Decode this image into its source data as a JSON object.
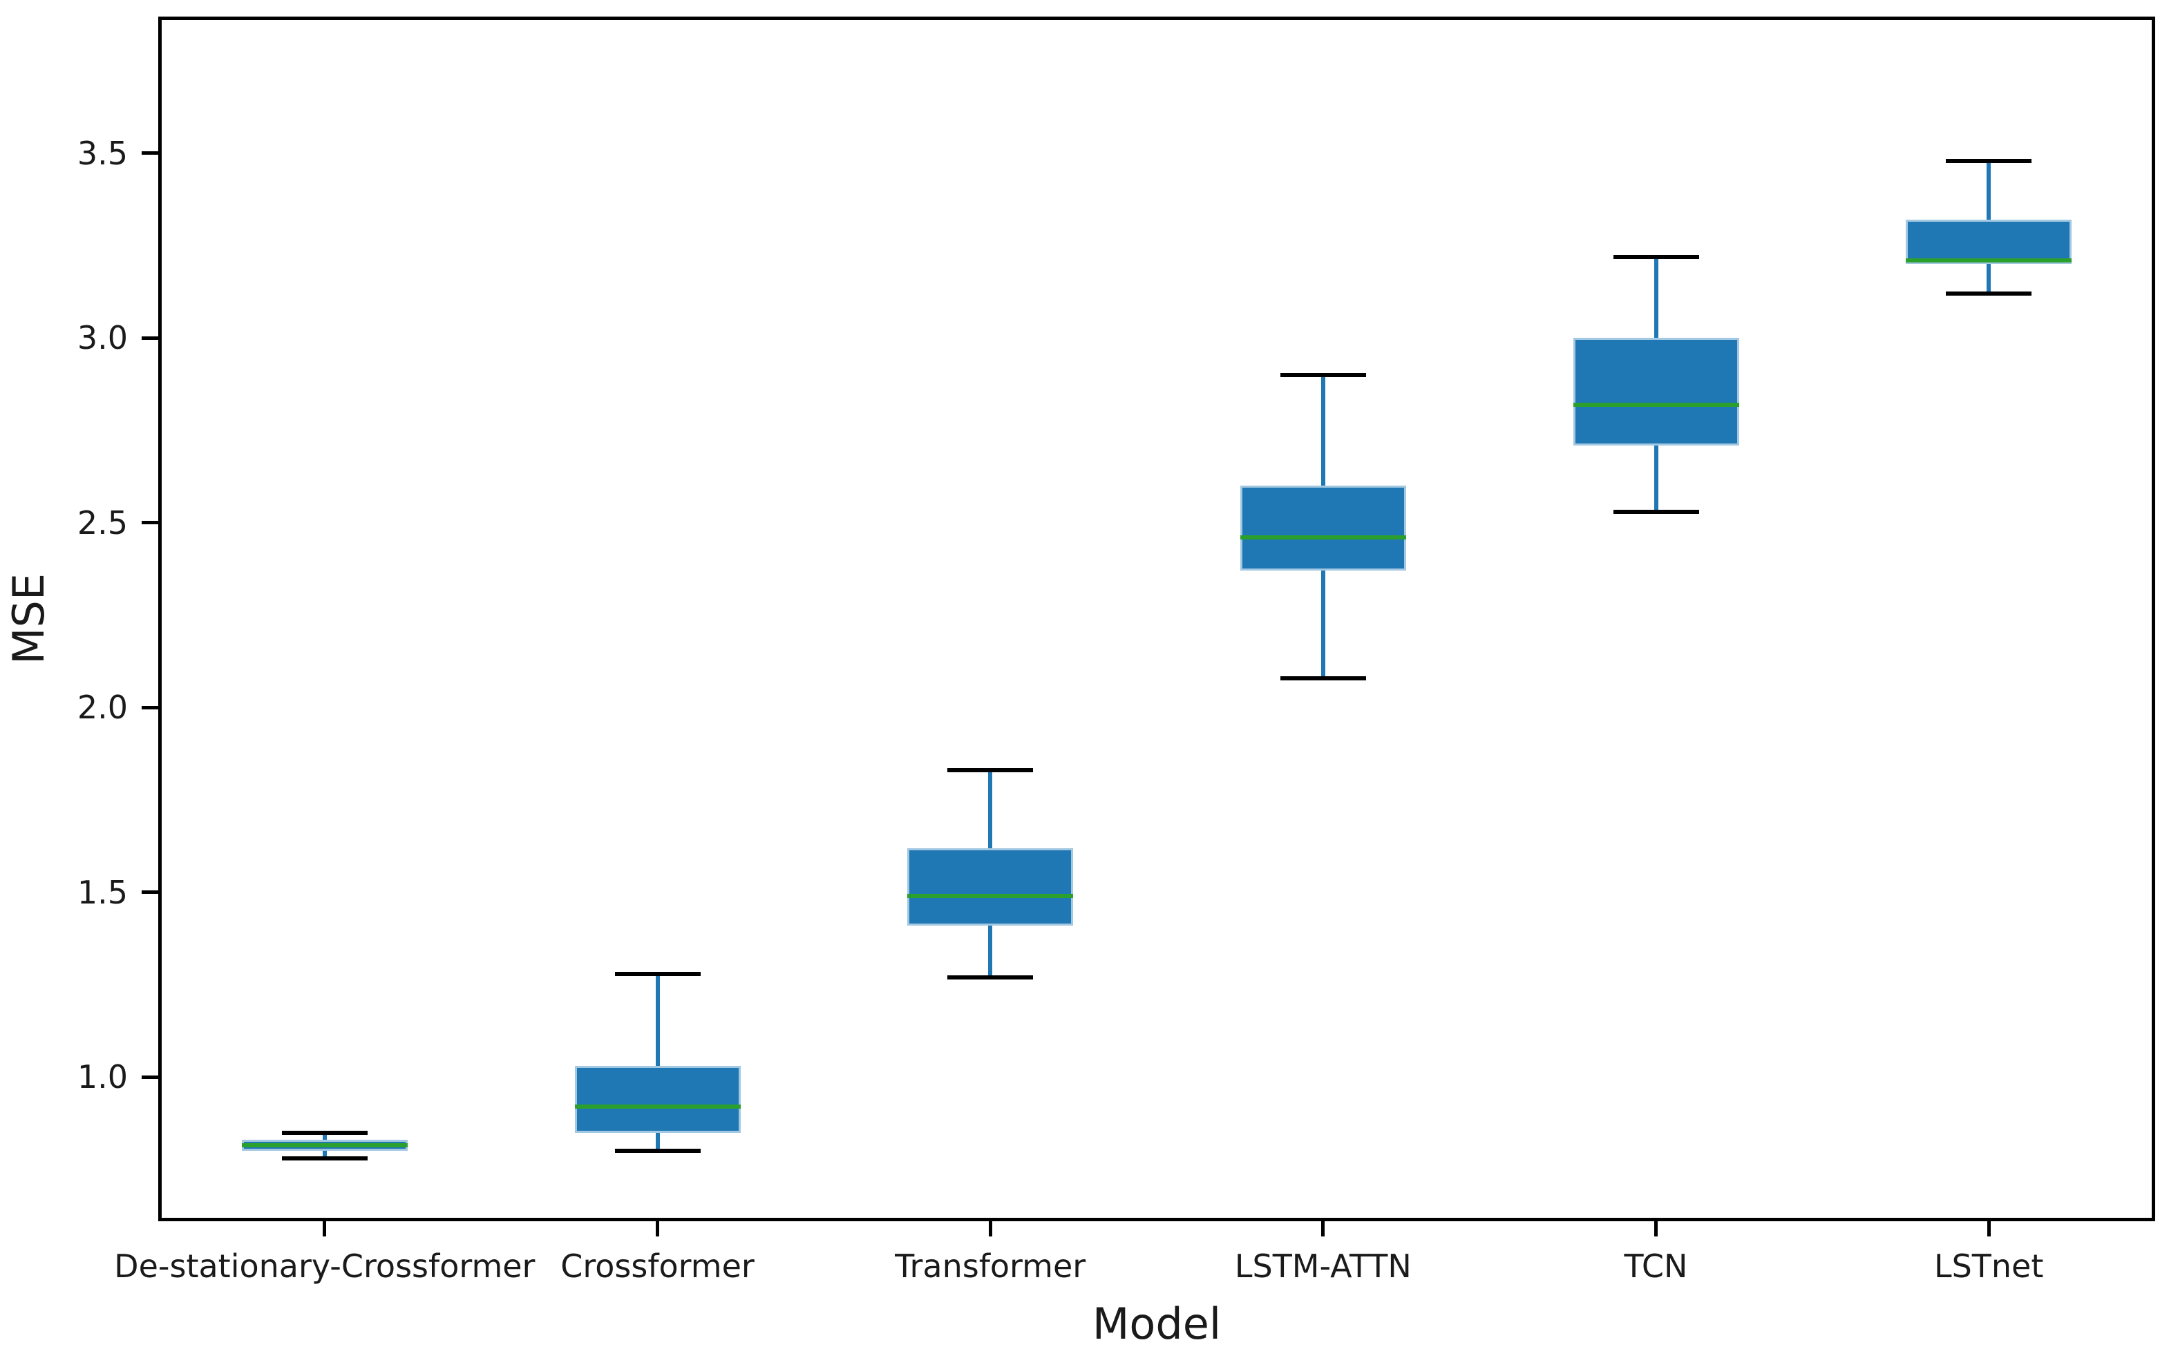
{
  "figure": {
    "background": "#ffffff"
  },
  "chart_data": {
    "type": "boxplot",
    "title": "",
    "xlabel": "Model",
    "ylabel": "MSE",
    "categories": [
      "De-stationary-Crossformer",
      "Crossformer",
      "Transformer",
      "LSTM-ATTN",
      "TCN",
      "LSTnet"
    ],
    "yticks": [
      "1.0",
      "1.5",
      "2.0",
      "2.5",
      "3.0",
      "3.5"
    ],
    "ylim": [
      0.61,
      3.87
    ],
    "grid": false,
    "legend": "none",
    "series": [
      {
        "name": "De-stationary-Crossformer",
        "whislo": 0.78,
        "q1": 0.8,
        "med": 0.815,
        "q3": 0.83,
        "whishi": 0.85
      },
      {
        "name": "Crossformer",
        "whislo": 0.8,
        "q1": 0.85,
        "med": 0.92,
        "q3": 1.03,
        "whishi": 1.28
      },
      {
        "name": "Transformer",
        "whislo": 1.27,
        "q1": 1.41,
        "med": 1.49,
        "q3": 1.62,
        "whishi": 1.83
      },
      {
        "name": "LSTM-ATTN",
        "whislo": 2.08,
        "q1": 2.37,
        "med": 2.46,
        "q3": 2.6,
        "whishi": 2.9
      },
      {
        "name": "TCN",
        "whislo": 2.53,
        "q1": 2.71,
        "med": 2.82,
        "q3": 3.0,
        "whishi": 3.22
      },
      {
        "name": "LSTnet",
        "whislo": 3.12,
        "q1": 3.2,
        "med": 3.21,
        "q3": 3.32,
        "whishi": 3.48
      }
    ]
  },
  "style": {
    "box_fill": "#1f77b4",
    "box_edge": "#a3c8e2",
    "median_color": "#2ca02c",
    "whisker_color": "#1f77b4",
    "cap_color": "#000000",
    "axis_color": "#000000",
    "text_color": "#1a1a1a"
  }
}
